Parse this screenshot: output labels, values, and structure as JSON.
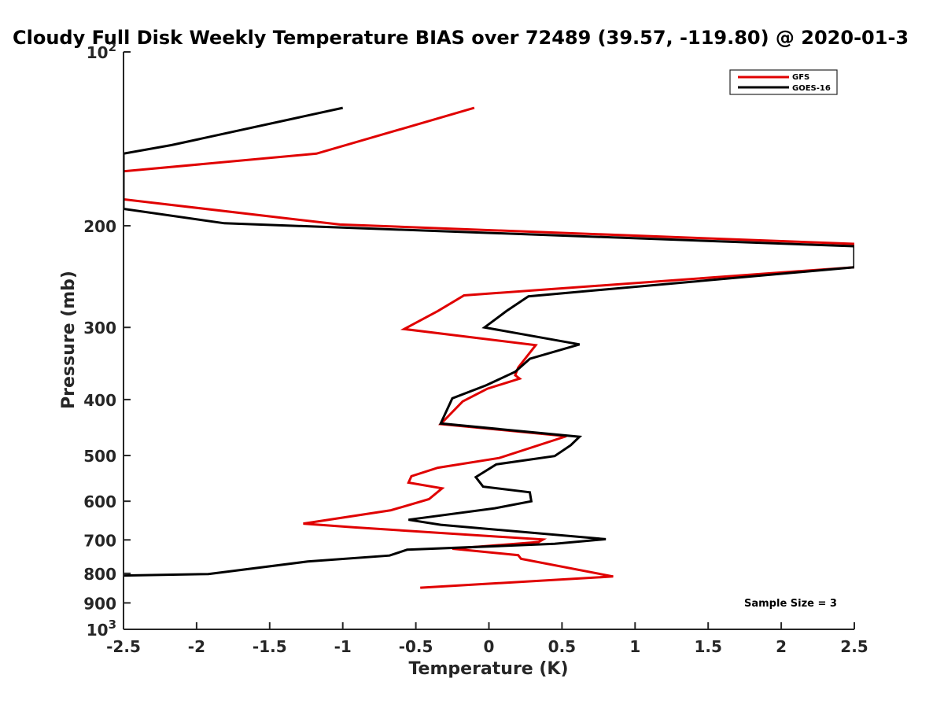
{
  "chart_data": {
    "type": "line",
    "title": "Cloudy Full Disk Weekly Temperature BIAS over 72489 (39.57, -119.80) @ 2020-01-3",
    "xlabel": "Temperature (K)",
    "ylabel": "Pressure (mb)",
    "xlim": [
      -2.5,
      2.5
    ],
    "ylim": [
      100,
      1000
    ],
    "y_scale": "log",
    "y_reversed": true,
    "grid": false,
    "legend_position": "top-right",
    "xticks": [
      "-2.5",
      "-2",
      "-1.5",
      "-1",
      "-0.5",
      "0",
      "0.5",
      "1",
      "1.5",
      "2",
      "2.5"
    ],
    "yticks": [
      {
        "value": 100,
        "base": "10",
        "exp": "2"
      },
      {
        "value": 200,
        "label": "200"
      },
      {
        "value": 300,
        "label": "300"
      },
      {
        "value": 400,
        "label": "400"
      },
      {
        "value": 500,
        "label": "500"
      },
      {
        "value": 600,
        "label": "600"
      },
      {
        "value": 700,
        "label": "700"
      },
      {
        "value": 800,
        "label": "800"
      },
      {
        "value": 900,
        "label": "900"
      },
      {
        "value": 1000,
        "base": "10",
        "exp": "3"
      }
    ],
    "series": [
      {
        "name": "GFS",
        "color": "#e00000",
        "points": [
          [
            -0.1,
            125
          ],
          [
            -1.18,
            150
          ],
          [
            -2.5,
            161
          ],
          [
            -2.5,
            180
          ],
          [
            -1.02,
            199
          ],
          [
            2.5,
            215
          ],
          [
            2.5,
            236
          ],
          [
            -0.17,
            264
          ],
          [
            -0.35,
            281
          ],
          [
            -0.58,
            302
          ],
          [
            0.32,
            322
          ],
          [
            0.2,
            352
          ],
          [
            0.18,
            363
          ],
          [
            0.21,
            368
          ],
          [
            -0.01,
            383
          ],
          [
            -0.18,
            403
          ],
          [
            -0.33,
            441
          ],
          [
            0.53,
            463
          ],
          [
            0.07,
            505
          ],
          [
            -0.35,
            525
          ],
          [
            -0.53,
            543
          ],
          [
            -0.55,
            557
          ],
          [
            -0.32,
            570
          ],
          [
            -0.41,
            595
          ],
          [
            -0.67,
            622
          ],
          [
            -1.27,
            656
          ],
          [
            -0.92,
            666
          ],
          [
            0.37,
            699
          ],
          [
            0.34,
            706
          ],
          [
            -0.25,
            725
          ],
          [
            0.2,
            744
          ],
          [
            0.22,
            755
          ],
          [
            0.85,
            810
          ],
          [
            -0.47,
            847
          ]
        ]
      },
      {
        "name": "GOES-16",
        "color": "#000000",
        "points": [
          [
            -1.0,
            125
          ],
          [
            -2.17,
            145
          ],
          [
            -2.5,
            150
          ],
          [
            -2.5,
            187
          ],
          [
            -1.81,
            198
          ],
          [
            2.5,
            217
          ],
          [
            2.5,
            236
          ],
          [
            0.27,
            265
          ],
          [
            0.12,
            281
          ],
          [
            -0.03,
            300
          ],
          [
            0.62,
            321
          ],
          [
            0.28,
            340
          ],
          [
            0.18,
            358
          ],
          [
            -0.02,
            378
          ],
          [
            -0.25,
            398
          ],
          [
            -0.33,
            440
          ],
          [
            0.62,
            464
          ],
          [
            0.56,
            480
          ],
          [
            0.45,
            501
          ],
          [
            0.05,
            518
          ],
          [
            -0.09,
            545
          ],
          [
            -0.04,
            566
          ],
          [
            0.28,
            579
          ],
          [
            0.29,
            600
          ],
          [
            0.04,
            617
          ],
          [
            -0.55,
            646
          ],
          [
            -0.33,
            659
          ],
          [
            0.8,
            698
          ],
          [
            0.45,
            711
          ],
          [
            -0.56,
            728
          ],
          [
            -0.68,
            745
          ],
          [
            -1.24,
            763
          ],
          [
            -1.92,
            802
          ],
          [
            -2.5,
            807
          ]
        ]
      }
    ],
    "annotation": "Sample Size = 3"
  }
}
